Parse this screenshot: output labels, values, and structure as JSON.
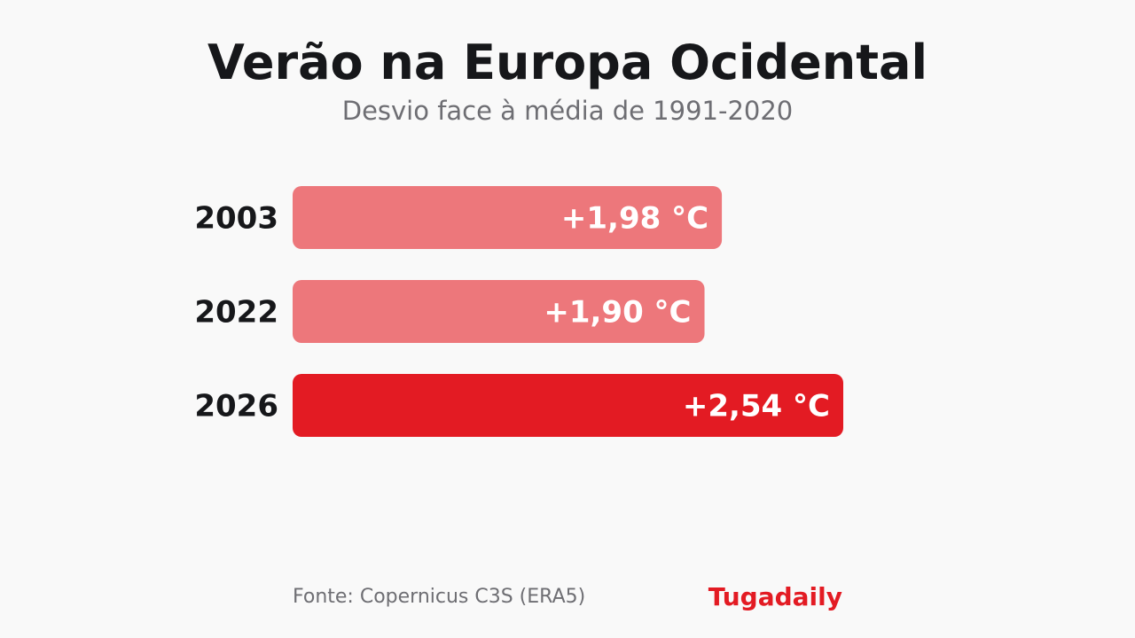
{
  "header": {
    "title": "Verão na Europa Ocidental",
    "subtitle": "Desvio face à média de 1991-2020"
  },
  "footer": {
    "source": "Fonte: Copernicus C3S (ERA5)",
    "brand": "Tugadaily"
  },
  "colors": {
    "past_bar": "#ed777b",
    "highlight_bar": "#e31b23",
    "brand": "#e31b23"
  },
  "chart_data": {
    "type": "bar",
    "orientation": "horizontal",
    "title": "Verão na Europa Ocidental",
    "subtitle": "Desvio face à média de 1991-2020",
    "categories": [
      "2003",
      "2022",
      "2026"
    ],
    "values": [
      1.98,
      1.9,
      2.54
    ],
    "value_labels": [
      "+1,98 °C",
      "+1,90 °C",
      "+2,54 °C"
    ],
    "highlight": [
      "2026"
    ],
    "xlim": [
      0,
      2.54
    ],
    "grid": false
  }
}
